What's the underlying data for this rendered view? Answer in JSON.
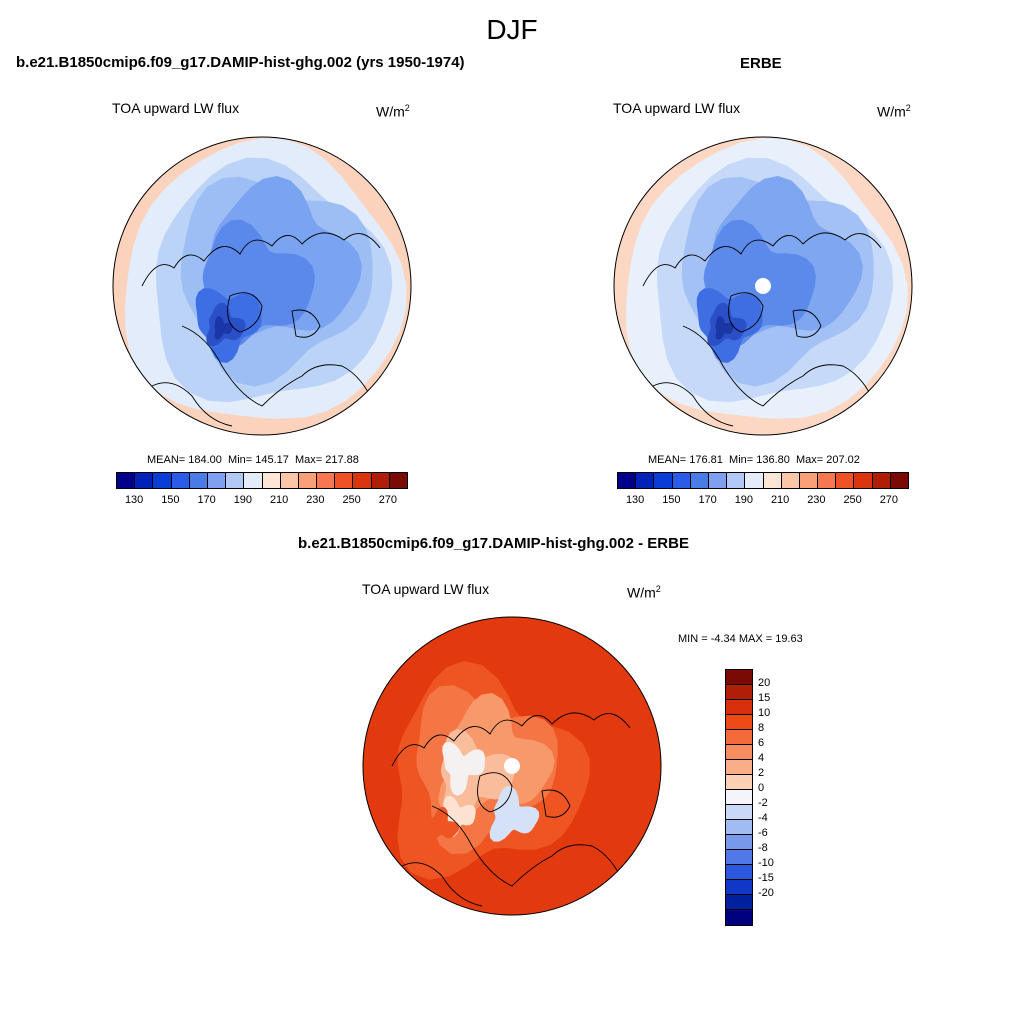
{
  "season": "DJF",
  "panels": [
    {
      "title": "b.e21.B1850cmip6.f09_g17.DAMIP-hist-ghg.002 (yrs 1950-1974)",
      "subtitle": "TOA upward LW flux",
      "units_base": "W/m",
      "units_exp": "2",
      "mean": "MEAN= 184.00",
      "min": "Min= 145.17",
      "max": "Max= 217.88"
    },
    {
      "title": "ERBE",
      "subtitle": "TOA upward LW flux",
      "units_base": "W/m",
      "units_exp": "2",
      "mean": "MEAN= 176.81",
      "min": "Min= 136.80",
      "max": "Max= 207.02"
    }
  ],
  "main_colorbar": {
    "colors": [
      "#00008b",
      "#0022b8",
      "#0a3cd6",
      "#2a5ce8",
      "#4a7ce8",
      "#7ea0ee",
      "#b2c8f6",
      "#e4ecfa",
      "#fde6d6",
      "#fbc6a6",
      "#f9a078",
      "#f77850",
      "#ee5226",
      "#da3410",
      "#b01e08",
      "#7a0a04"
    ],
    "labels": [
      "130",
      "150",
      "170",
      "190",
      "210",
      "230",
      "250",
      "270"
    ]
  },
  "diff_panel": {
    "title": "b.e21.B1850cmip6.f09_g17.DAMIP-hist-ghg.002 - ERBE",
    "subtitle": "TOA upward LW flux",
    "units_base": "W/m",
    "units_exp": "2",
    "minmax": "MIN =  -4.34 MAX =  19.63"
  },
  "diff_colorbar": {
    "colors": [
      "#7a0a04",
      "#b01e08",
      "#d8300c",
      "#ee4a18",
      "#f56a3a",
      "#f78c60",
      "#f9ae88",
      "#fbd0b4",
      "#f4f4fa",
      "#c8d8f6",
      "#a0bcf2",
      "#7898ec",
      "#5078e6",
      "#2c58e0",
      "#1038c8",
      "#0020a0",
      "#00007e"
    ],
    "labels": [
      "20",
      "15",
      "10",
      "8",
      "6",
      "4",
      "2",
      "0",
      "-2",
      "-4",
      "-6",
      "-8",
      "-10",
      "-15",
      "-20"
    ]
  },
  "map_palettes": {
    "model": [
      "#fbd3bd",
      "#e2ecfb",
      "#bcd3f8",
      "#9dbdf5",
      "#7aa3f1",
      "#5a88eb",
      "#3d6ee4",
      "#2a50c8",
      "#1a36a8"
    ],
    "obs": [
      "#fcd8c4",
      "#e8f0fb",
      "#c6d9f8",
      "#a3c1f5",
      "#7fa6f0",
      "#5c8aea",
      "#3f6ee2",
      "#2a4fc6",
      "#1a37a6"
    ],
    "diff": [
      "#e23a0e",
      "#ee5522",
      "#f47644",
      "#f8996c",
      "#fabd9c",
      "#fde2d2",
      "#f6f1f1",
      "#d5e1f6",
      "#b3c8f2"
    ]
  }
}
